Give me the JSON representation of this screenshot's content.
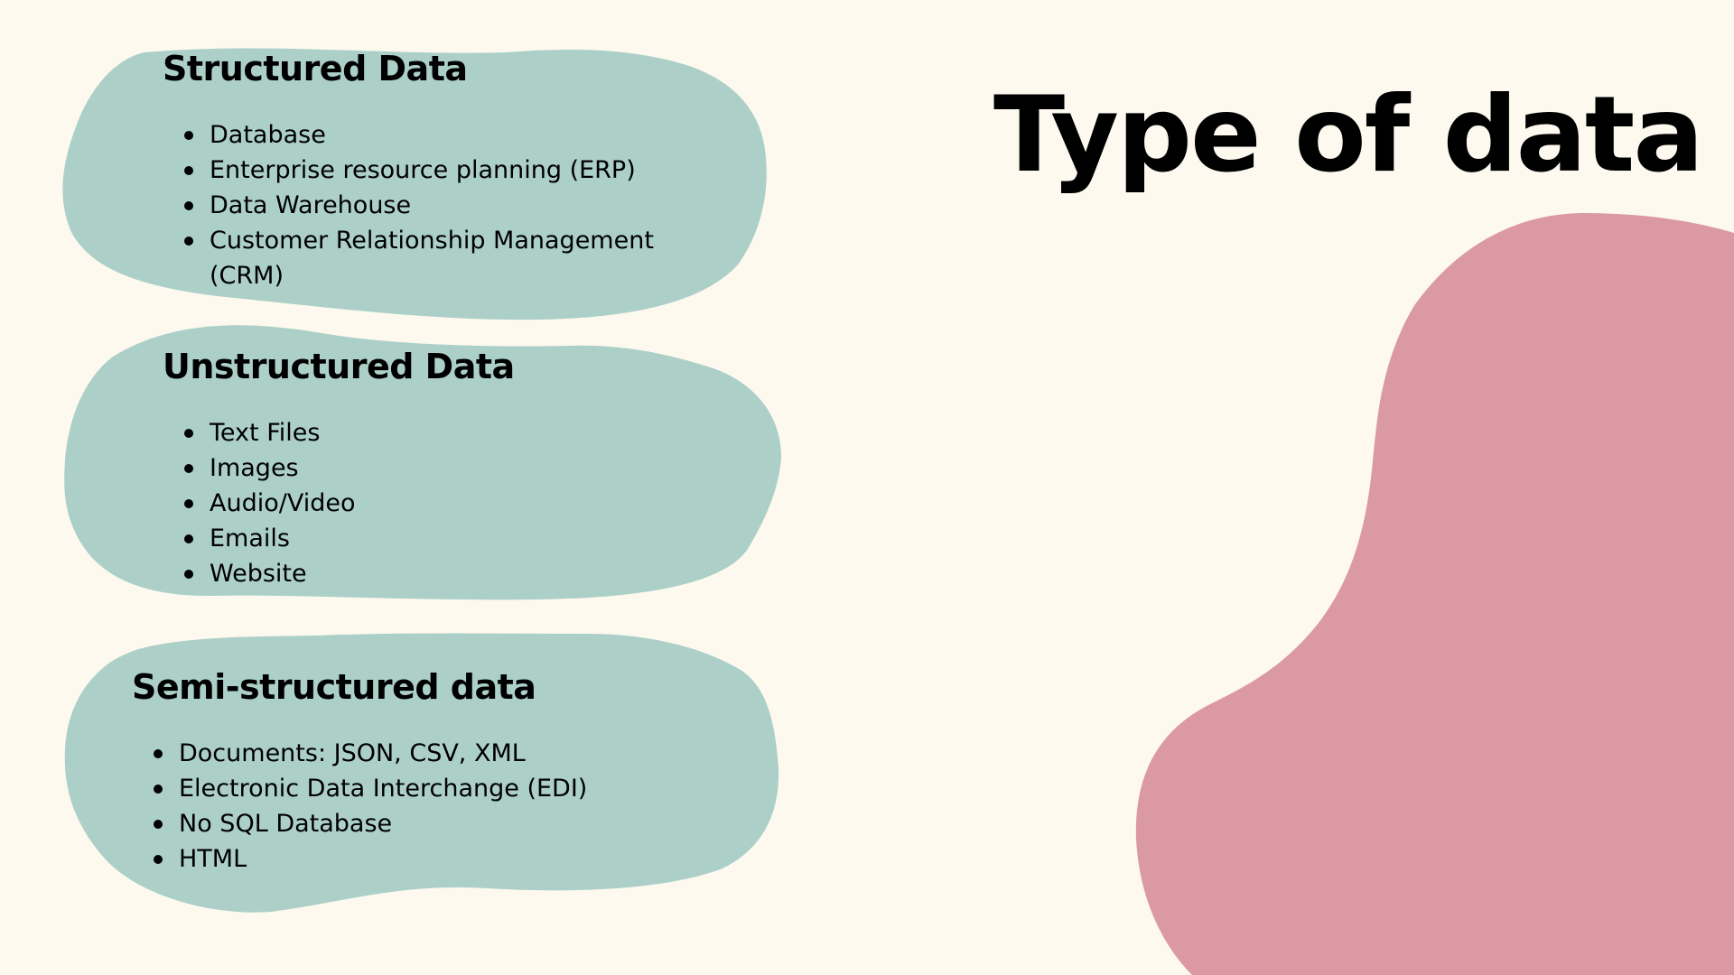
{
  "slide": {
    "title": "Type of data",
    "colors": {
      "background": "#fdf9ef",
      "blob_teal": "#acd0c8",
      "blob_pink": "#db9aa3",
      "text": "#000000"
    }
  },
  "sections": [
    {
      "heading": "Structured Data",
      "items": [
        "Database",
        "Enterprise resource planning (ERP)",
        "Data Warehouse",
        "Customer Relationship Management (CRM)"
      ]
    },
    {
      "heading": "Unstructured Data",
      "items": [
        "Text Files",
        "Images",
        "Audio/Video",
        "Emails",
        "Website"
      ]
    },
    {
      "heading": "Semi-structured data",
      "items": [
        "Documents: JSON, CSV, XML",
        "Electronic Data Interchange (EDI)",
        "No SQL Database",
        "HTML"
      ]
    }
  ]
}
